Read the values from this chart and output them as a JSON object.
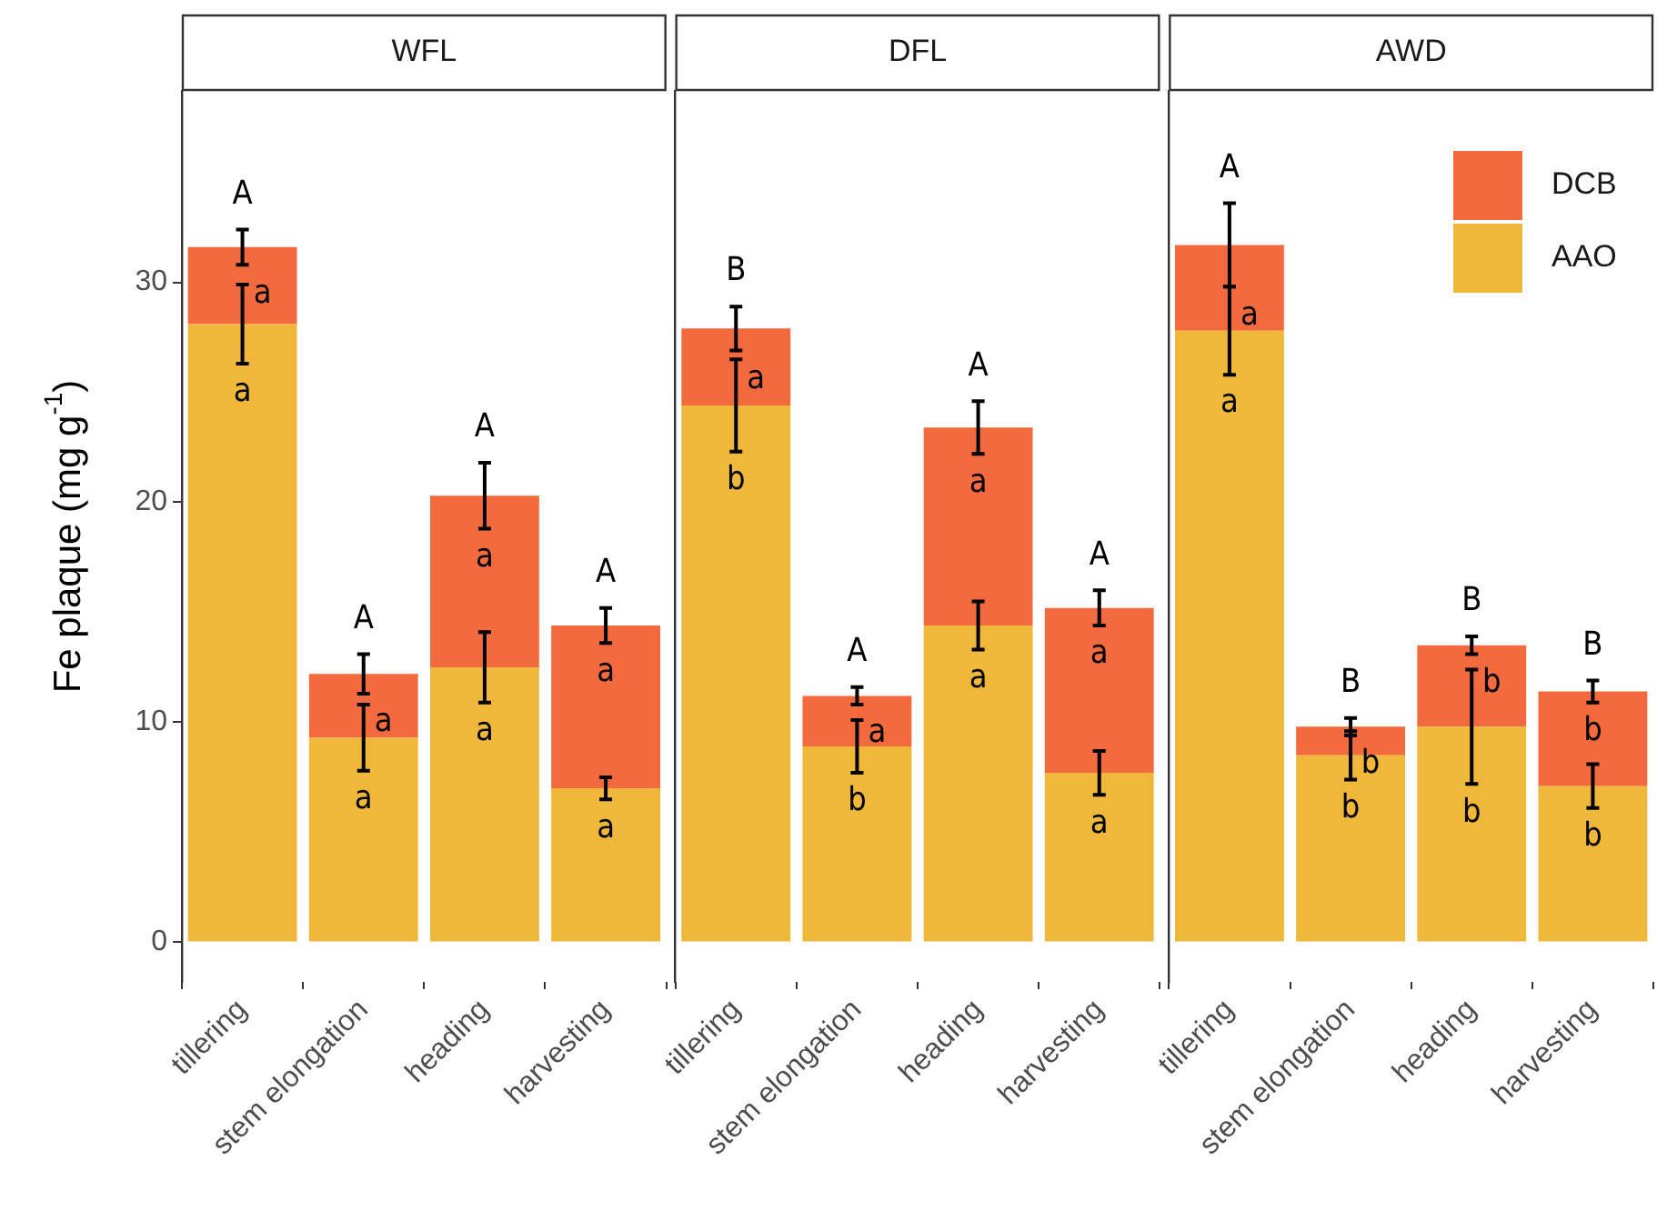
{
  "chart_data": [
    {
      "type": "bar",
      "stacked": true,
      "title": "WFL",
      "ylabel": "Fe plaque (mg g$^{-1}$)",
      "categories": [
        "tillering",
        "stem elongation",
        "heading",
        "harvesting"
      ],
      "series": [
        {
          "color": "#f0b83a",
          "values": [
            28.1,
            9.3,
            12.5,
            7.0
          ],
          "errors": [
            1.8,
            1.5,
            1.6,
            0.5
          ],
          "value_labels": [
            "a",
            "a",
            "a",
            "a"
          ]
        },
        {
          "color": "#f26a3e",
          "values": [
            3.5,
            2.9,
            7.8,
            7.4
          ],
          "errors": [
            0.8,
            0.9,
            1.5,
            0.8
          ],
          "value_labels": [
            "a",
            "a",
            "a",
            "a"
          ]
        }
      ],
      "totals": [
        "A",
        "A",
        "A",
        "A"
      ],
      "ylim": [
        -1.8,
        38.7
      ],
      "yticks": [
        0,
        10,
        20,
        30
      ]
    },
    {
      "type": "bar",
      "stacked": true,
      "title": "DFL",
      "categories": [
        "tillering",
        "stem elongation",
        "heading",
        "harvesting"
      ],
      "series": [
        {
          "color": "#f0b83a",
          "values": [
            24.4,
            8.9,
            14.4,
            7.7
          ],
          "errors": [
            2.1,
            1.2,
            1.1,
            1.0
          ],
          "value_labels": [
            "b",
            "b",
            "a",
            "a"
          ]
        },
        {
          "color": "#f26a3e",
          "values": [
            3.5,
            2.3,
            9.0,
            7.5
          ],
          "errors": [
            1.0,
            0.4,
            1.2,
            0.8
          ],
          "value_labels": [
            "a",
            "a",
            "a",
            "a"
          ]
        }
      ],
      "totals": [
        "B",
        "A",
        "A",
        "A"
      ],
      "ylim": [
        -1.8,
        38.7
      ],
      "tick_labels": "x"
    },
    {
      "type": "bar",
      "stacked": true,
      "title": "AWD",
      "categories": [
        "tillering",
        "stem elongation",
        "heading",
        "harvesting"
      ],
      "series": [
        {
          "name": "AAO",
          "color": "#f0b83a",
          "values": [
            27.8,
            8.5,
            9.8,
            7.1
          ],
          "errors": [
            2.0,
            1.1,
            2.6,
            1.0
          ],
          "value_labels": [
            "a",
            "b",
            "b",
            "b"
          ]
        },
        {
          "name": "DCB",
          "color": "#f26a3e",
          "values": [
            3.9,
            1.3,
            3.7,
            4.3
          ],
          "errors": [
            1.9,
            0.4,
            0.4,
            0.5
          ],
          "value_labels": [
            "a",
            "b",
            "b",
            "b"
          ]
        }
      ],
      "totals": [
        "A",
        "B",
        "B",
        "B"
      ],
      "ylim": [
        -1.8,
        38.7
      ],
      "tick_labels": "x",
      "legend": "top right"
    }
  ]
}
